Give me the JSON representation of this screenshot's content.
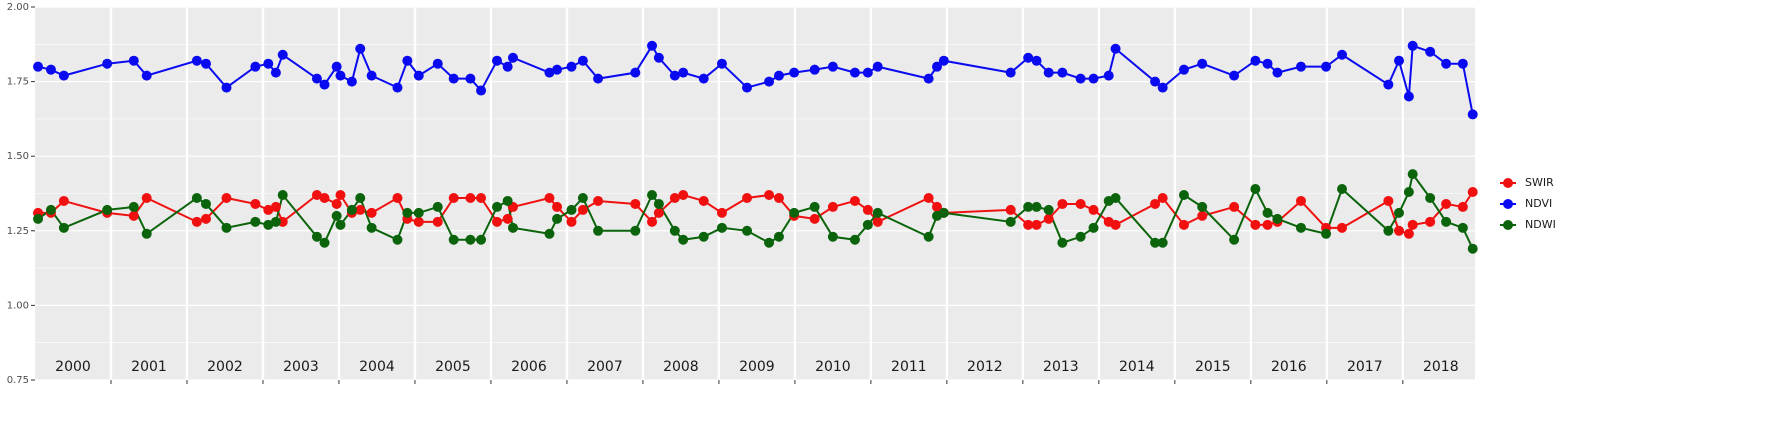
{
  "chart_data": {
    "type": "line",
    "x": [
      2000.04,
      2000.21,
      2000.38,
      2000.95,
      2001.3,
      2001.47,
      2002.13,
      2002.25,
      2002.52,
      2002.9,
      2003.07,
      2003.17,
      2003.26,
      2003.71,
      2003.81,
      2003.97,
      2004.02,
      2004.17,
      2004.28,
      2004.43,
      2004.77,
      2004.9,
      2005.05,
      2005.3,
      2005.51,
      2005.73,
      2005.87,
      2006.08,
      2006.22,
      2006.29,
      2006.77,
      2006.87,
      2007.06,
      2007.21,
      2007.41,
      2007.9,
      2008.12,
      2008.21,
      2008.42,
      2008.53,
      2008.8,
      2009.04,
      2009.37,
      2009.66,
      2009.79,
      2009.99,
      2010.26,
      2010.5,
      2010.79,
      2010.96,
      2011.09,
      2011.76,
      2011.87,
      2011.96,
      2012.84,
      2013.07,
      2013.18,
      2013.34,
      2013.52,
      2013.76,
      2013.93,
      2014.13,
      2014.22,
      2014.74,
      2014.84,
      2015.12,
      2015.36,
      2015.78,
      2016.06,
      2016.22,
      2016.35,
      2016.66,
      2016.99,
      2017.2,
      2017.81,
      2017.95,
      2018.08,
      2018.13,
      2018.36,
      2018.57,
      2018.79,
      2018.92
    ],
    "series": [
      {
        "name": "SWIR",
        "color": "#f01010",
        "values": [
          1.31,
          1.31,
          1.35,
          1.31,
          1.3,
          1.36,
          1.28,
          1.29,
          1.36,
          1.34,
          1.32,
          1.33,
          1.28,
          1.37,
          1.36,
          1.34,
          1.37,
          1.31,
          1.32,
          1.31,
          1.36,
          1.29,
          1.28,
          1.28,
          1.36,
          1.36,
          1.36,
          1.28,
          1.29,
          1.33,
          1.36,
          1.33,
          1.28,
          1.32,
          1.35,
          1.34,
          1.28,
          1.31,
          1.36,
          1.37,
          1.35,
          1.31,
          1.36,
          1.37,
          1.36,
          1.3,
          1.29,
          1.33,
          1.35,
          1.32,
          1.28,
          1.36,
          1.33,
          1.31,
          1.32,
          1.27,
          1.27,
          1.29,
          1.34,
          1.34,
          1.32,
          1.28,
          1.27,
          1.34,
          1.36,
          1.27,
          1.3,
          1.33,
          1.27,
          1.27,
          1.28,
          1.35,
          1.26,
          1.26,
          1.35,
          1.25,
          1.24,
          1.27,
          1.28,
          1.34,
          1.33,
          1.38
        ]
      },
      {
        "name": "NDVI",
        "color": "#0a0af0",
        "values": [
          1.8,
          1.79,
          1.77,
          1.81,
          1.82,
          1.77,
          1.82,
          1.81,
          1.73,
          1.8,
          1.81,
          1.78,
          1.84,
          1.76,
          1.74,
          1.8,
          1.77,
          1.75,
          1.86,
          1.77,
          1.73,
          1.82,
          1.77,
          1.81,
          1.76,
          1.76,
          1.72,
          1.82,
          1.8,
          1.83,
          1.78,
          1.79,
          1.8,
          1.82,
          1.76,
          1.78,
          1.87,
          1.83,
          1.77,
          1.78,
          1.76,
          1.81,
          1.73,
          1.75,
          1.77,
          1.78,
          1.79,
          1.8,
          1.78,
          1.78,
          1.8,
          1.76,
          1.8,
          1.82,
          1.78,
          1.83,
          1.82,
          1.78,
          1.78,
          1.76,
          1.76,
          1.77,
          1.86,
          1.75,
          1.73,
          1.79,
          1.81,
          1.77,
          1.82,
          1.81,
          1.78,
          1.8,
          1.8,
          1.84,
          1.74,
          1.82,
          1.7,
          1.87,
          1.85,
          1.81,
          1.81,
          1.64
        ]
      },
      {
        "name": "NDWI",
        "color": "#0b640b",
        "values": [
          1.29,
          1.32,
          1.26,
          1.32,
          1.33,
          1.24,
          1.36,
          1.34,
          1.26,
          1.28,
          1.27,
          1.28,
          1.37,
          1.23,
          1.21,
          1.3,
          1.27,
          1.32,
          1.36,
          1.26,
          1.22,
          1.31,
          1.31,
          1.33,
          1.22,
          1.22,
          1.22,
          1.33,
          1.35,
          1.26,
          1.24,
          1.29,
          1.32,
          1.36,
          1.25,
          1.25,
          1.37,
          1.34,
          1.25,
          1.22,
          1.23,
          1.26,
          1.25,
          1.21,
          1.23,
          1.31,
          1.33,
          1.23,
          1.22,
          1.27,
          1.31,
          1.23,
          1.3,
          1.31,
          1.28,
          1.33,
          1.33,
          1.32,
          1.21,
          1.23,
          1.26,
          1.35,
          1.36,
          1.21,
          1.21,
          1.37,
          1.33,
          1.22,
          1.39,
          1.31,
          1.29,
          1.26,
          1.24,
          1.39,
          1.25,
          1.31,
          1.38,
          1.44,
          1.36,
          1.28,
          1.26,
          1.19
        ]
      }
    ],
    "xlim": [
      2000,
      2018.95
    ],
    "xbreaks": [
      2001,
      2002,
      2003,
      2004,
      2005,
      2006,
      2007,
      2008,
      2009,
      2010,
      2011,
      2012,
      2013,
      2014,
      2015,
      2016,
      2017,
      2018
    ],
    "xticks": [
      {
        "value": 2000.5,
        "label": "2000"
      },
      {
        "value": 2001.5,
        "label": "2001"
      },
      {
        "value": 2002.5,
        "label": "2002"
      },
      {
        "value": 2003.5,
        "label": "2003"
      },
      {
        "value": 2004.5,
        "label": "2004"
      },
      {
        "value": 2005.5,
        "label": "2005"
      },
      {
        "value": 2006.5,
        "label": "2006"
      },
      {
        "value": 2007.5,
        "label": "2007"
      },
      {
        "value": 2008.5,
        "label": "2008"
      },
      {
        "value": 2009.5,
        "label": "2009"
      },
      {
        "value": 2010.5,
        "label": "2010"
      },
      {
        "value": 2011.5,
        "label": "2011"
      },
      {
        "value": 2012.5,
        "label": "2012"
      },
      {
        "value": 2013.5,
        "label": "2013"
      },
      {
        "value": 2014.5,
        "label": "2014"
      },
      {
        "value": 2015.5,
        "label": "2015"
      },
      {
        "value": 2016.5,
        "label": "2016"
      },
      {
        "value": 2017.5,
        "label": "2017"
      },
      {
        "value": 2018.5,
        "label": "2018"
      }
    ],
    "ylim": [
      0.75,
      2.0
    ],
    "yticks": [
      {
        "value": 0.75,
        "label": "0.75"
      },
      {
        "value": 1.0,
        "label": "1.00"
      },
      {
        "value": 1.25,
        "label": "1.25"
      },
      {
        "value": 1.5,
        "label": "1.50"
      },
      {
        "value": 1.75,
        "label": "1.75"
      },
      {
        "value": 2.0,
        "label": "2.00"
      }
    ],
    "grid": true,
    "legend": "right"
  }
}
